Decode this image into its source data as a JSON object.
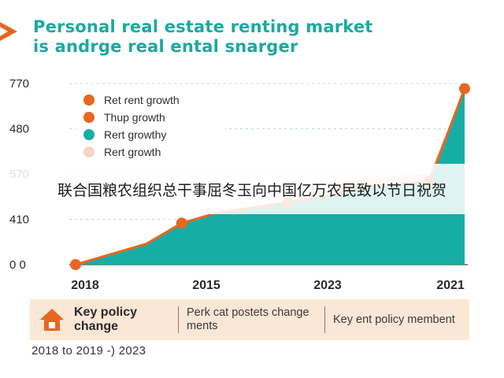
{
  "title": {
    "line1": "Personal real estate renting market",
    "line2": "is andrge real ental snarger"
  },
  "chart_data": {
    "type": "area",
    "title": "Personal real estate renting market is andrge real ental snarger",
    "y_tick_labels": [
      "770",
      "480",
      "570",
      "410",
      "0 0"
    ],
    "x_tick_labels": [
      "2018",
      "2015",
      "2023",
      "2021"
    ],
    "series": [
      {
        "name": "Rent growth",
        "values": [
          0,
          2,
          4,
          8,
          10,
          11,
          12,
          13,
          15,
          15.5,
          16,
          34
        ],
        "color": "#17ada5"
      },
      {
        "name": "Rert growth",
        "values": [
          0,
          2,
          4,
          8,
          10,
          11,
          12,
          15,
          16.5,
          17,
          17.5,
          34
        ],
        "color": "#f6d6c3"
      }
    ],
    "markers": [
      {
        "index": 0,
        "value": 0
      },
      {
        "index": 3,
        "value": 8
      },
      {
        "index": 6,
        "value": 12
      },
      {
        "index": 10,
        "value": 16
      },
      {
        "index": 11,
        "value": 34
      }
    ],
    "ylim": [
      0,
      35
    ],
    "grid": true
  },
  "legend": {
    "items": [
      {
        "label": "Ret rent growth",
        "color": "#e8661f"
      },
      {
        "label": "Thup growth",
        "color": "#e8661f"
      },
      {
        "label": "Rert growthy",
        "color": "#17ada5"
      },
      {
        "label": "Rert growth",
        "color": "#f6d6c3"
      }
    ]
  },
  "overlay": {
    "text": "联合国粮农组织总干事屈冬玉向中国亿万农民致以节日祝贺"
  },
  "policy": {
    "icon": "house-icon",
    "title": "Key policy change",
    "col1": "Perk cat postets change ments",
    "col2": "Key ent policy membent"
  },
  "footer": {
    "text": "2018 to 2019 -) 2023"
  },
  "colors": {
    "accent": "#e8661f",
    "teal": "#17ada5",
    "peach": "#f6d6c3",
    "title": "#1aa9a0"
  }
}
